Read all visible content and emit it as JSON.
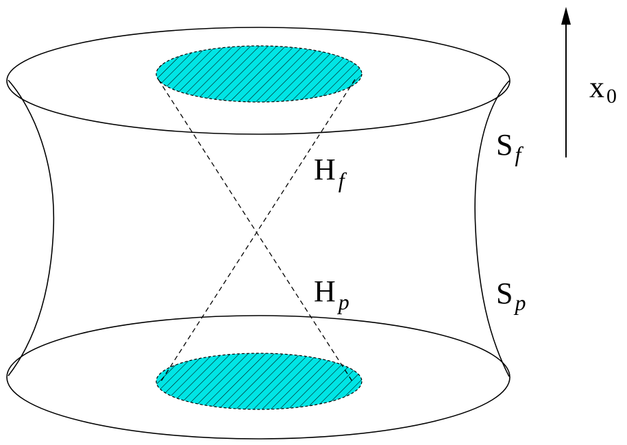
{
  "labels": {
    "time_axis": {
      "main": "x",
      "sub": "0"
    },
    "future_horizon": {
      "main": "H",
      "sub": "f"
    },
    "past_horizon": {
      "main": "H",
      "sub": "p"
    },
    "future_surface": {
      "main": "S",
      "sub": "f"
    },
    "past_surface": {
      "main": "S",
      "sub": "p"
    }
  },
  "colors": {
    "fill": "#00e5e5",
    "stroke": "#000000",
    "hatch": "#000000"
  }
}
